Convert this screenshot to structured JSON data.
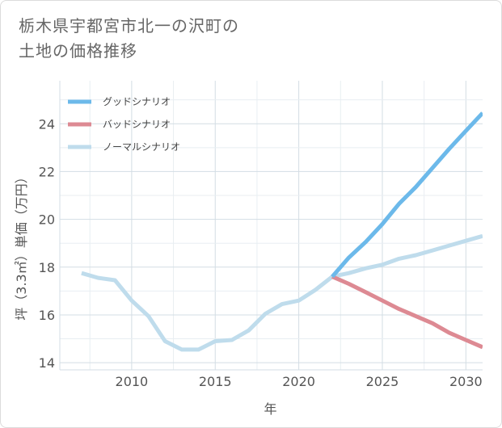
{
  "header": {
    "title_line1": "栃木県宇都宮市北一の沢町の",
    "title_line2": "土地の価格推移"
  },
  "chart_data": {
    "type": "line",
    "title": "栃木県宇都宮市北一の沢町の土地の価格推移",
    "xlabel": "年",
    "ylabel": "坪（3.3㎡）単価（万円）",
    "xlim": [
      2005.7,
      2031.0
    ],
    "ylim": [
      13.7,
      25.8
    ],
    "xticks": [
      2010,
      2015,
      2020,
      2025,
      2030
    ],
    "yticks": [
      14,
      16,
      18,
      20,
      22,
      24
    ],
    "legend_position": "top-left",
    "series": [
      {
        "name": "グッドシナリオ",
        "color": "#6cb9ea",
        "x": [
          2022,
          2023,
          2024,
          2025,
          2026,
          2027,
          2028,
          2029,
          2030,
          2031
        ],
        "y": [
          17.6,
          18.4,
          19.05,
          19.8,
          20.65,
          21.35,
          22.15,
          22.95,
          23.7,
          24.45
        ]
      },
      {
        "name": "バッドシナリオ",
        "color": "#dd8a93",
        "x": [
          2022,
          2023,
          2024,
          2025,
          2026,
          2027,
          2028,
          2029,
          2030,
          2031
        ],
        "y": [
          17.6,
          17.3,
          16.95,
          16.6,
          16.25,
          15.95,
          15.65,
          15.25,
          14.95,
          14.65
        ]
      },
      {
        "name": "ノーマルシナリオ",
        "color": "#bfdcec",
        "x": [
          2007,
          2008,
          2009,
          2010,
          2011,
          2012,
          2013,
          2014,
          2015,
          2016,
          2017,
          2018,
          2019,
          2020,
          2021,
          2022,
          2023,
          2024,
          2025,
          2026,
          2027,
          2028,
          2029,
          2030,
          2031
        ],
        "y": [
          17.75,
          17.55,
          17.45,
          16.6,
          15.95,
          14.9,
          14.55,
          14.55,
          14.9,
          14.95,
          15.35,
          16.05,
          16.45,
          16.6,
          17.05,
          17.6,
          17.75,
          17.95,
          18.1,
          18.35,
          18.5,
          18.7,
          18.9,
          19.1,
          19.3
        ]
      }
    ]
  }
}
